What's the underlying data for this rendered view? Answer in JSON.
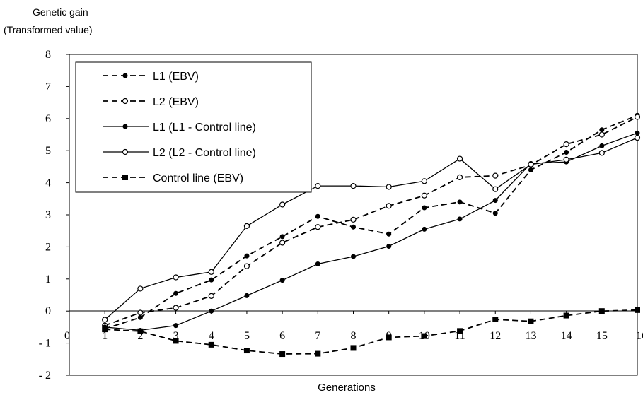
{
  "chart_data": {
    "type": "line",
    "ylabel_line1": "Genetic gain",
    "ylabel_line2": "(Transformed value)",
    "xlabel": "Generations",
    "xlim": [
      0,
      16
    ],
    "ylim": [
      -2,
      8
    ],
    "x_ticks": [
      "0",
      "1",
      "2",
      "3",
      "4",
      "5",
      "6",
      "7",
      "8",
      "9",
      "10",
      "11",
      "12",
      "13",
      "14",
      "15",
      "16"
    ],
    "y_ticks": [
      "- 2",
      "- 1",
      "0",
      "1",
      "2",
      "3",
      "4",
      "5",
      "6",
      "7",
      "8"
    ],
    "legend_position": "top-left",
    "x": [
      1,
      2,
      3,
      4,
      5,
      6,
      7,
      8,
      9,
      10,
      11,
      12,
      13,
      14,
      15,
      16
    ],
    "series": [
      {
        "name": "L1 (EBV)",
        "line_style": "dashed",
        "marker": "filled-circle",
        "values": [
          -0.55,
          -0.2,
          0.55,
          0.97,
          1.72,
          2.32,
          2.95,
          2.62,
          2.4,
          3.22,
          3.4,
          3.05,
          4.4,
          4.95,
          5.65,
          6.1
        ]
      },
      {
        "name": "L2 (EBV)",
        "line_style": "dashed",
        "marker": "open-circle",
        "values": [
          -0.45,
          -0.05,
          0.1,
          0.47,
          1.4,
          2.13,
          2.62,
          2.85,
          3.28,
          3.6,
          4.17,
          4.22,
          4.55,
          5.2,
          5.5,
          6.05
        ]
      },
      {
        "name": "L1 (L1 - Control line)",
        "line_style": "solid",
        "marker": "filled-circle",
        "values": [
          -0.5,
          -0.6,
          -0.45,
          0.0,
          0.48,
          0.96,
          1.47,
          1.7,
          2.02,
          2.55,
          2.87,
          3.45,
          4.6,
          4.65,
          5.15,
          5.55
        ]
      },
      {
        "name": "L2 (L2 - Control line)",
        "line_style": "solid",
        "marker": "open-circle",
        "values": [
          -0.27,
          0.7,
          1.05,
          1.22,
          2.65,
          3.32,
          3.9,
          3.9,
          3.87,
          4.05,
          4.75,
          3.8,
          4.57,
          4.72,
          4.93,
          5.4
        ]
      },
      {
        "name": "Control line (EBV)",
        "line_style": "dashed",
        "marker": "filled-square",
        "values": [
          -0.57,
          -0.63,
          -0.93,
          -1.05,
          -1.23,
          -1.34,
          -1.33,
          -1.15,
          -0.82,
          -0.78,
          -0.62,
          -0.26,
          -0.32,
          -0.14,
          0.0,
          0.03
        ]
      }
    ]
  }
}
